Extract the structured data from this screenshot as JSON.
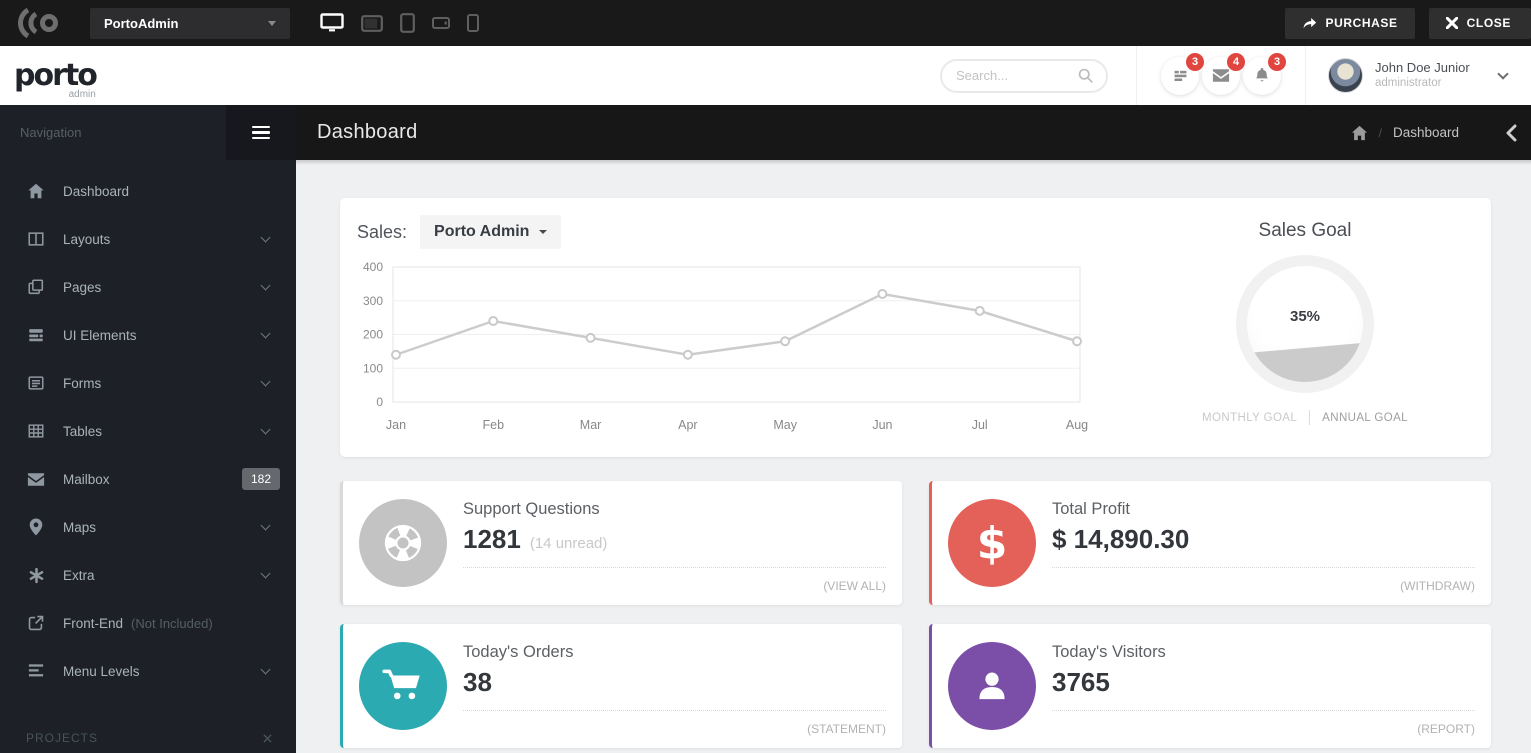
{
  "topbar": {
    "brand": "PortoAdmin",
    "purchase": "PURCHASE",
    "close": "CLOSE"
  },
  "header": {
    "logo": "porto",
    "logo_sub": "admin",
    "search_placeholder": "Search...",
    "badges": {
      "messages": "3",
      "mail": "4",
      "alerts": "3"
    },
    "user_name": "John Doe Junior",
    "user_role": "administrator"
  },
  "sidebar": {
    "section": "Navigation",
    "items": [
      {
        "label": "Dashboard"
      },
      {
        "label": "Layouts"
      },
      {
        "label": "Pages"
      },
      {
        "label": "UI Elements"
      },
      {
        "label": "Forms"
      },
      {
        "label": "Tables"
      },
      {
        "label": "Mailbox",
        "badge": "182"
      },
      {
        "label": "Maps"
      },
      {
        "label": "Extra"
      },
      {
        "label": "Front-End",
        "note": "(Not Included)"
      },
      {
        "label": "Menu Levels"
      }
    ],
    "projects": "PROJECTS"
  },
  "page": {
    "title": "Dashboard",
    "breadcrumb_separator": "/",
    "breadcrumb_current": "Dashboard"
  },
  "sales": {
    "label": "Sales:",
    "selector": "Porto Admin"
  },
  "chart_data": {
    "type": "line",
    "title": "Sales",
    "categories": [
      "Jan",
      "Feb",
      "Mar",
      "Apr",
      "May",
      "Jun",
      "Jul",
      "Aug"
    ],
    "values": [
      140,
      240,
      190,
      140,
      180,
      320,
      270,
      180
    ],
    "ylim": [
      0,
      400
    ],
    "yticks": [
      400,
      300,
      200,
      100,
      0
    ],
    "grid": true,
    "legend": false,
    "line_color": "#cccccc",
    "marker_color": "#ffffff",
    "marker_stroke": "#c9c9c9"
  },
  "sales_goal": {
    "title": "Sales Goal",
    "percent": "35%",
    "fill_percent": 35,
    "tab_monthly": "MONTHLY GOAL",
    "tab_annual": "ANNUAL GOAL"
  },
  "cards": [
    {
      "title": "Support Questions",
      "value": "1281",
      "note": "(14 unread)",
      "action": "(VIEW ALL)",
      "accent": "#d9d9d9",
      "icon_bg": "#c3c3c3"
    },
    {
      "title": "Total Profit",
      "value": "$ 14,890.30",
      "note": "",
      "action": "(WITHDRAW)",
      "accent": "#e36159",
      "icon_bg": "#e36159"
    },
    {
      "title": "Today's Orders",
      "value": "38",
      "note": "",
      "action": "(STATEMENT)",
      "accent": "#2baab1",
      "icon_bg": "#2baab1"
    },
    {
      "title": "Today's Visitors",
      "value": "3765",
      "note": "",
      "action": "(REPORT)",
      "accent": "#7b4fa7",
      "icon_bg": "#7b4fa7"
    }
  ]
}
